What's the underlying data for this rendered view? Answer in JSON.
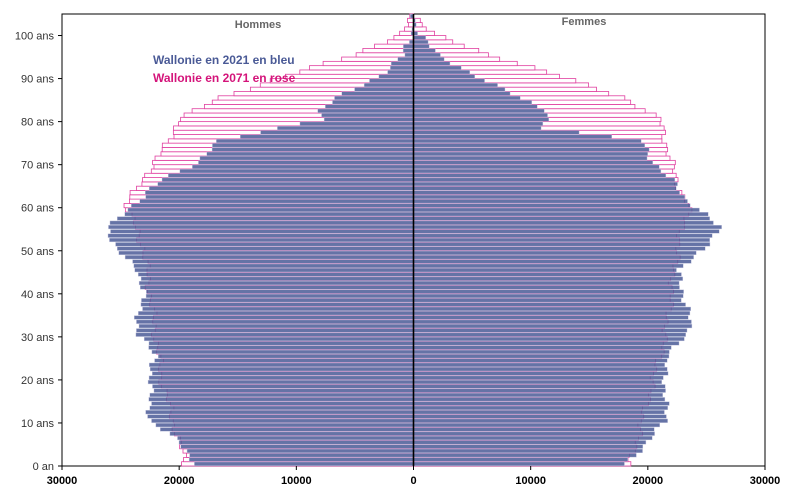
{
  "chart_data": {
    "type": "bar",
    "orientation": "horizontal-population-pyramid",
    "title": "",
    "labels": {
      "left": "Hommes",
      "right": "Femmes"
    },
    "legend": [
      {
        "name": "Wallonie en 2021 en bleu",
        "color": "#4a5a96"
      },
      {
        "name": "Wallonie en 2071 en rose",
        "color": "#d4147a"
      }
    ],
    "y_ticks": [
      "0 an",
      "10 ans",
      "20 ans",
      "30 ans",
      "40 ans",
      "50 ans",
      "60 ans",
      "70 ans",
      "80 ans",
      "90 ans",
      "100 ans"
    ],
    "x_ticks": [
      "30000",
      "20000",
      "10000",
      "0",
      "10000",
      "20000",
      "30000"
    ],
    "xlim": [
      -30000,
      30000
    ],
    "ylim": [
      0,
      105
    ],
    "age_step": 1,
    "colors": {
      "series2021_fill": "#4a5a96",
      "series2071_fill": "#7a2a7a",
      "series2071_stroke": "#e040a0",
      "axis": "#000000"
    },
    "series": [
      {
        "name": "2021",
        "men_key_points": [
          [
            0,
            18500
          ],
          [
            5,
            20000
          ],
          [
            10,
            22500
          ],
          [
            15,
            22500
          ],
          [
            20,
            22500
          ],
          [
            25,
            22000
          ],
          [
            30,
            23500
          ],
          [
            35,
            23500
          ],
          [
            40,
            23000
          ],
          [
            45,
            23500
          ],
          [
            50,
            25500
          ],
          [
            55,
            26000
          ],
          [
            58,
            25000
          ],
          [
            62,
            23000
          ],
          [
            66,
            21500
          ],
          [
            70,
            18500
          ],
          [
            75,
            16500
          ],
          [
            78,
            11500
          ],
          [
            80,
            8000
          ],
          [
            82,
            8000
          ],
          [
            85,
            6500
          ],
          [
            90,
            3000
          ],
          [
            95,
            800
          ],
          [
            100,
            200
          ],
          [
            104,
            0
          ]
        ],
        "women_key_points": [
          [
            0,
            18000
          ],
          [
            5,
            20000
          ],
          [
            10,
            21500
          ],
          [
            15,
            21500
          ],
          [
            20,
            21500
          ],
          [
            25,
            21500
          ],
          [
            30,
            23500
          ],
          [
            35,
            23500
          ],
          [
            40,
            23000
          ],
          [
            45,
            22500
          ],
          [
            50,
            25000
          ],
          [
            55,
            26000
          ],
          [
            58,
            25000
          ],
          [
            62,
            23000
          ],
          [
            66,
            22000
          ],
          [
            70,
            20500
          ],
          [
            75,
            19500
          ],
          [
            78,
            11000
          ],
          [
            80,
            11500
          ],
          [
            82,
            11500
          ],
          [
            85,
            9000
          ],
          [
            90,
            5500
          ],
          [
            95,
            2000
          ],
          [
            100,
            500
          ],
          [
            104,
            0
          ]
        ]
      },
      {
        "name": "2071",
        "men_key_points": [
          [
            0,
            19500
          ],
          [
            10,
            20500
          ],
          [
            20,
            21500
          ],
          [
            30,
            22000
          ],
          [
            40,
            22500
          ],
          [
            50,
            23000
          ],
          [
            60,
            24500
          ],
          [
            65,
            23500
          ],
          [
            70,
            22000
          ],
          [
            80,
            20000
          ],
          [
            85,
            16500
          ],
          [
            90,
            11000
          ],
          [
            95,
            5000
          ],
          [
            100,
            1000
          ],
          [
            104,
            0
          ]
        ],
        "women_key_points": [
          [
            0,
            18500
          ],
          [
            10,
            19500
          ],
          [
            20,
            20500
          ],
          [
            30,
            21500
          ],
          [
            40,
            22000
          ],
          [
            50,
            22500
          ],
          [
            60,
            23500
          ],
          [
            65,
            22500
          ],
          [
            70,
            22000
          ],
          [
            80,
            21000
          ],
          [
            85,
            18000
          ],
          [
            90,
            12500
          ],
          [
            95,
            6500
          ],
          [
            100,
            1500
          ],
          [
            104,
            0
          ]
        ]
      }
    ]
  }
}
